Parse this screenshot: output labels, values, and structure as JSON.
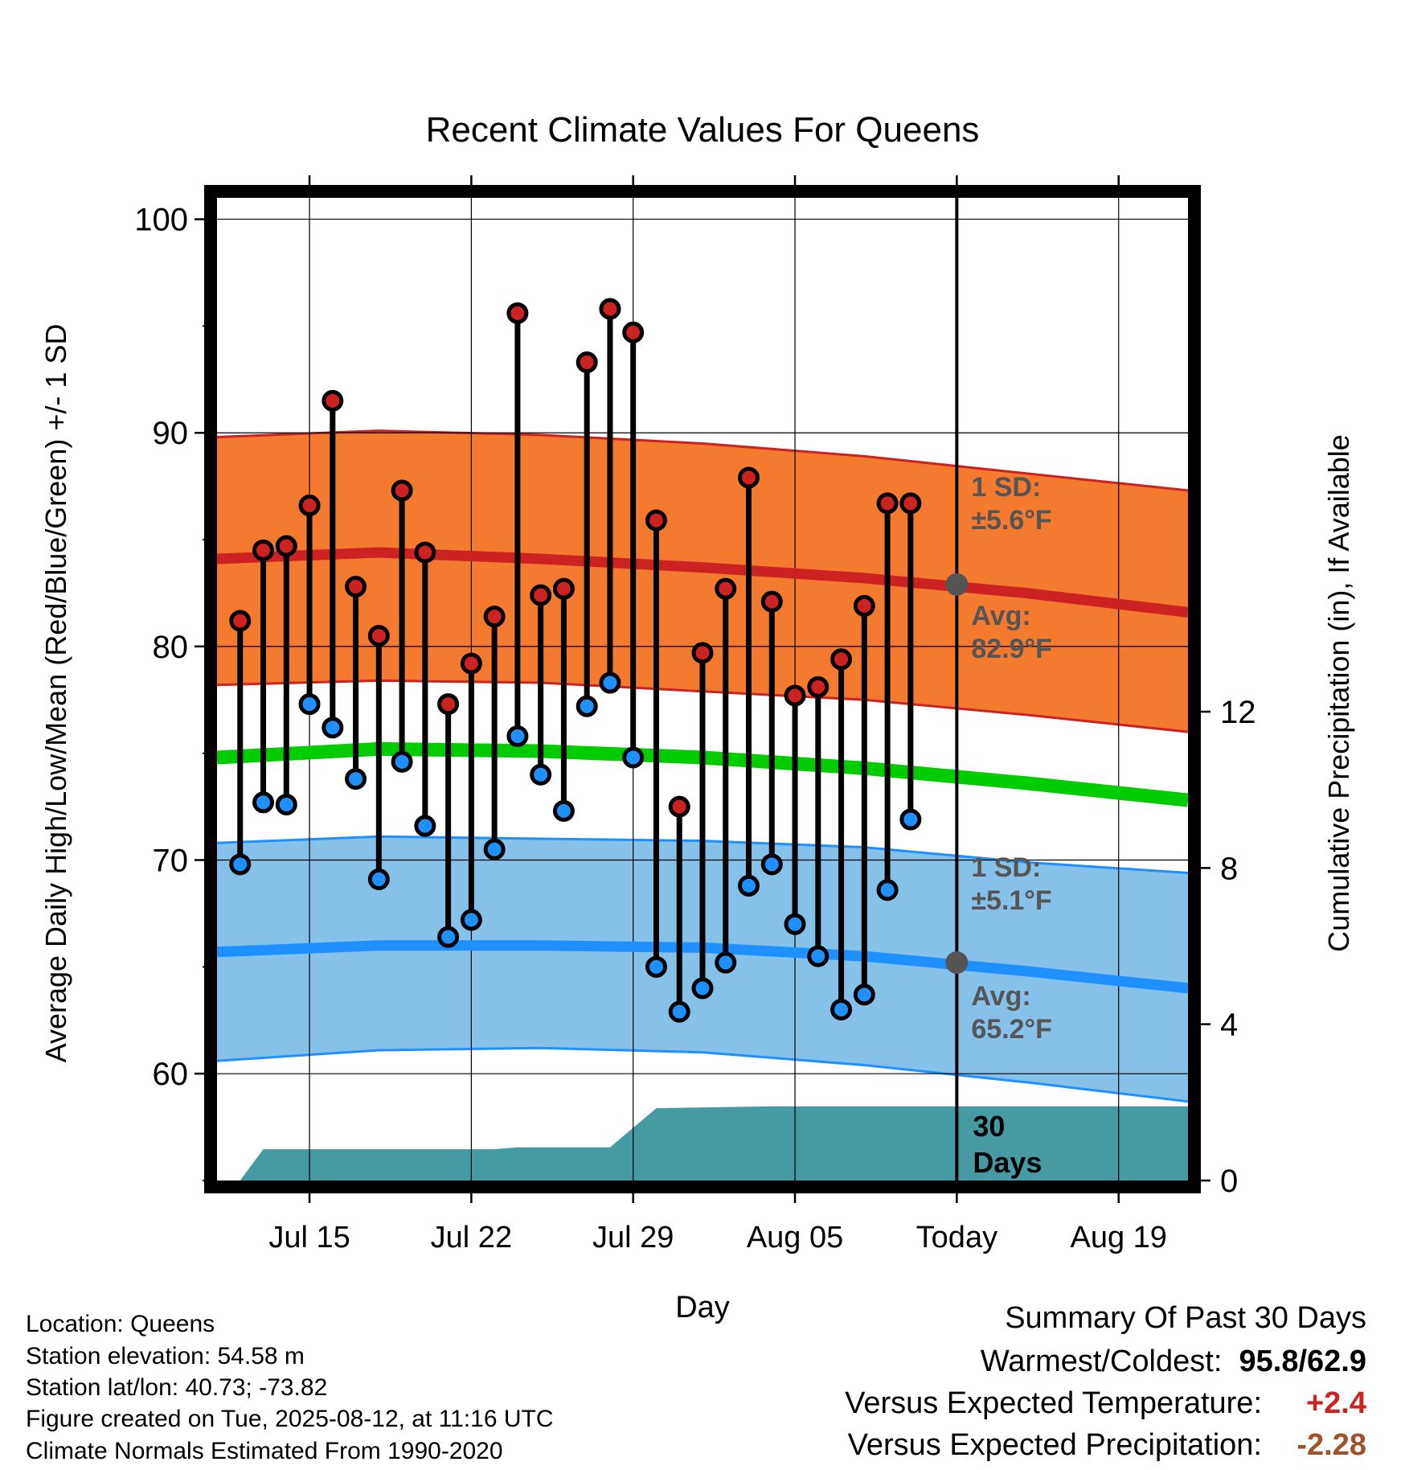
{
  "chart_data": {
    "type": "line",
    "title": "Recent Climate Values For Queens",
    "xlabel": "Day",
    "ylabel": "Average Daily High/Low/Mean (Red/Blue/Green) +/- 1 SD",
    "y2label": "Cumulative Precipitation (in), If Available",
    "ylim": [
      55,
      101
    ],
    "y2lim": [
      0,
      24
    ],
    "xlim": [
      "2025-07-11",
      "2025-08-22"
    ],
    "x_ticks": [
      {
        "date": "2025-07-15",
        "label": "Jul 15"
      },
      {
        "date": "2025-07-22",
        "label": "Jul 22"
      },
      {
        "date": "2025-07-29",
        "label": "Jul 29"
      },
      {
        "date": "2025-08-05",
        "label": "Aug 05"
      },
      {
        "date": "2025-08-12",
        "label": "Today"
      },
      {
        "date": "2025-08-19",
        "label": "Aug 19"
      }
    ],
    "y_ticks": [
      60,
      70,
      80,
      90,
      100
    ],
    "y2_ticks": [
      0,
      4,
      8,
      12
    ],
    "grid": true,
    "today": "2025-08-12",
    "colors": {
      "high": "#cc2222",
      "low": "#1e90ff",
      "high_band": "#f47a30",
      "low_band": "#85c1e9",
      "mean": "#00cc00",
      "precip": "#469ba3",
      "marker_today": "#555555"
    },
    "observations": [
      {
        "date": "2025-07-12",
        "high": 81.2,
        "low": 69.8
      },
      {
        "date": "2025-07-13",
        "high": 84.5,
        "low": 72.7
      },
      {
        "date": "2025-07-14",
        "high": 84.7,
        "low": 72.6
      },
      {
        "date": "2025-07-15",
        "high": 86.6,
        "low": 77.3
      },
      {
        "date": "2025-07-16",
        "high": 91.5,
        "low": 76.2
      },
      {
        "date": "2025-07-17",
        "high": 82.8,
        "low": 73.8
      },
      {
        "date": "2025-07-18",
        "high": 80.5,
        "low": 69.1
      },
      {
        "date": "2025-07-19",
        "high": 87.3,
        "low": 74.6
      },
      {
        "date": "2025-07-20",
        "high": 84.4,
        "low": 71.6
      },
      {
        "date": "2025-07-21",
        "high": 77.3,
        "low": 66.4
      },
      {
        "date": "2025-07-22",
        "high": 79.2,
        "low": 67.2
      },
      {
        "date": "2025-07-23",
        "high": 81.4,
        "low": 70.5
      },
      {
        "date": "2025-07-24",
        "high": 95.6,
        "low": 75.8
      },
      {
        "date": "2025-07-25",
        "high": 82.4,
        "low": 74.0
      },
      {
        "date": "2025-07-26",
        "high": 82.7,
        "low": 72.3
      },
      {
        "date": "2025-07-27",
        "high": 93.3,
        "low": 77.2
      },
      {
        "date": "2025-07-28",
        "high": 95.8,
        "low": 78.3
      },
      {
        "date": "2025-07-29",
        "high": 94.7,
        "low": 74.8
      },
      {
        "date": "2025-07-30",
        "high": 85.9,
        "low": 65.0
      },
      {
        "date": "2025-07-31",
        "high": 72.5,
        "low": 62.9
      },
      {
        "date": "2025-08-01",
        "high": 79.7,
        "low": 64.0
      },
      {
        "date": "2025-08-02",
        "high": 82.7,
        "low": 65.2
      },
      {
        "date": "2025-08-03",
        "high": 87.9,
        "low": 68.8
      },
      {
        "date": "2025-08-04",
        "high": 82.1,
        "low": 69.8
      },
      {
        "date": "2025-08-05",
        "high": 77.7,
        "low": 67.0
      },
      {
        "date": "2025-08-06",
        "high": 78.1,
        "low": 65.5
      },
      {
        "date": "2025-08-07",
        "high": 79.4,
        "low": 63.0
      },
      {
        "date": "2025-08-08",
        "high": 81.9,
        "low": 63.7
      },
      {
        "date": "2025-08-09",
        "high": 86.7,
        "low": 68.6
      },
      {
        "date": "2025-08-10",
        "high": 86.7,
        "low": 71.9
      }
    ],
    "normals": [
      {
        "date": "2025-07-11",
        "avg_high": 84.1,
        "avg_low": 65.7,
        "avg_mean": 74.8,
        "high_plus_sd": 89.8,
        "high_minus_sd": 78.2,
        "low_plus_sd": 70.8,
        "low_minus_sd": 60.6
      },
      {
        "date": "2025-07-18",
        "avg_high": 84.4,
        "avg_low": 66.0,
        "avg_mean": 75.2,
        "high_plus_sd": 90.1,
        "high_minus_sd": 78.4,
        "low_plus_sd": 71.1,
        "low_minus_sd": 61.1
      },
      {
        "date": "2025-07-25",
        "avg_high": 84.1,
        "avg_low": 66.0,
        "avg_mean": 75.1,
        "high_plus_sd": 89.9,
        "high_minus_sd": 78.3,
        "low_plus_sd": 71.0,
        "low_minus_sd": 61.2
      },
      {
        "date": "2025-08-01",
        "avg_high": 83.7,
        "avg_low": 65.9,
        "avg_mean": 74.8,
        "high_plus_sd": 89.5,
        "high_minus_sd": 77.9,
        "low_plus_sd": 70.9,
        "low_minus_sd": 61.0
      },
      {
        "date": "2025-08-08",
        "avg_high": 83.2,
        "avg_low": 65.5,
        "avg_mean": 74.3,
        "high_plus_sd": 88.9,
        "high_minus_sd": 77.5,
        "low_plus_sd": 70.6,
        "low_minus_sd": 60.4
      },
      {
        "date": "2025-08-15",
        "avg_high": 82.5,
        "avg_low": 64.8,
        "avg_mean": 73.6,
        "high_plus_sd": 88.1,
        "high_minus_sd": 76.8,
        "low_plus_sd": 69.9,
        "low_minus_sd": 59.6
      },
      {
        "date": "2025-08-22",
        "avg_high": 81.6,
        "avg_low": 64.0,
        "avg_mean": 72.8,
        "high_plus_sd": 87.3,
        "high_minus_sd": 76.0,
        "low_plus_sd": 69.4,
        "low_minus_sd": 58.7
      }
    ],
    "today_avg_high": 82.9,
    "today_avg_low": 65.2,
    "precip_cumulative": [
      {
        "date": "2025-07-12",
        "value": 0.0
      },
      {
        "date": "2025-07-13",
        "value": 0.8
      },
      {
        "date": "2025-07-23",
        "value": 0.8
      },
      {
        "date": "2025-07-24",
        "value": 0.85
      },
      {
        "date": "2025-07-28",
        "value": 0.85
      },
      {
        "date": "2025-07-30",
        "value": 1.85
      },
      {
        "date": "2025-08-04",
        "value": 1.9
      },
      {
        "date": "2025-08-22",
        "value": 1.9
      }
    ],
    "annotations": {
      "high_sd": [
        "1 SD:",
        "±5.6°F"
      ],
      "high_avg": [
        "Avg:",
        "82.9°F"
      ],
      "low_sd": [
        "1 SD:",
        "±5.1°F"
      ],
      "low_avg": [
        "Avg:",
        "65.2°F"
      ],
      "window": [
        "30",
        "Days"
      ]
    }
  },
  "info": {
    "location": "Location: Queens",
    "elevation": "Station elevation: 54.58 m",
    "latlon": "Station lat/lon: 40.73; -73.82",
    "created": "Figure created on Tue, 2025-08-12, at 11:16 UTC",
    "normals": "Climate Normals Estimated From 1990-2020"
  },
  "summary": {
    "heading": "Summary Of Past 30 Days",
    "warm_cold_label": "Warmest/Coldest:",
    "warm_cold_value": "95.8/62.9",
    "temp_label": "Versus Expected Temperature:",
    "temp_value": "+2.4",
    "temp_color": "#cc2222",
    "precip_label": "Versus Expected Precipitation:",
    "precip_value": "-2.28",
    "precip_color": "#a0522d"
  }
}
